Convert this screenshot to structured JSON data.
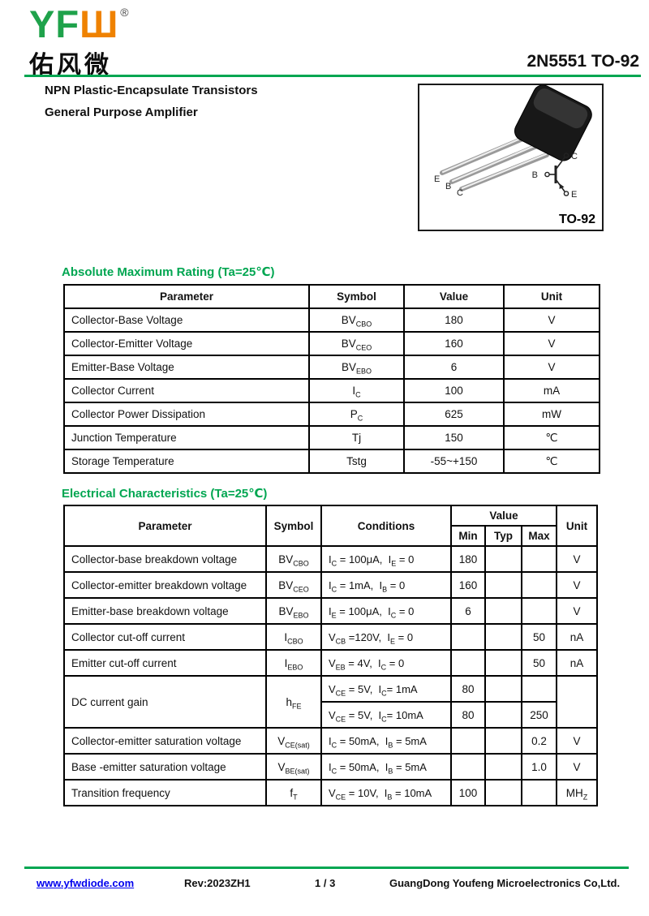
{
  "brand": {
    "logo_latin_green": "YF",
    "logo_latin_orange": "Ш",
    "registered_mark": "®",
    "logo_chinese": "佑风微",
    "accent_green": "#00a651",
    "logo_orange_color": "#ef8200"
  },
  "page": {
    "part_title": "2N5551 TO-92",
    "subtitle_line1": "NPN Plastic-Encapsulate Transistors",
    "subtitle_line2": "General Purpose Amplifier"
  },
  "package": {
    "label": "TO-92",
    "lead_labels": {
      "e": "E",
      "b": "B",
      "c": "C"
    },
    "symbol_labels": {
      "b": "B",
      "c": "C",
      "e": "E"
    }
  },
  "abs_max": {
    "title": "Absolute Maximum Rating (Ta=25℃)",
    "headers": {
      "param": "Parameter",
      "symbol": "Symbol",
      "value": "Value",
      "unit": "Unit"
    },
    "rows": [
      {
        "param": "Collector-Base Voltage",
        "symbol": "BV_{CBO}",
        "value": "180",
        "unit": "V"
      },
      {
        "param": "Collector-Emitter Voltage",
        "symbol": "BV_{CEO}",
        "value": "160",
        "unit": "V"
      },
      {
        "param": "Emitter-Base Voltage",
        "symbol": "BV_{EBO}",
        "value": "6",
        "unit": "V"
      },
      {
        "param": "Collector Current",
        "symbol": "I_{C}",
        "value": "100",
        "unit": "mA"
      },
      {
        "param": "Collector Power Dissipation",
        "symbol": "P_{C}",
        "value": "625",
        "unit": "mW"
      },
      {
        "param": "Junction Temperature",
        "symbol": "Tj",
        "value": "150",
        "unit": "℃"
      },
      {
        "param": "Storage Temperature",
        "symbol": "Tstg",
        "value": "-55~+150",
        "unit": "℃"
      }
    ]
  },
  "elec": {
    "title": "Electrical Characteristics (Ta=25℃)",
    "headers": {
      "param": "Parameter",
      "symbol": "Symbol",
      "cond": "Conditions",
      "value": "Value",
      "min": "Min",
      "typ": "Typ",
      "max": "Max",
      "unit": "Unit"
    },
    "rows": [
      {
        "param": "Collector-base breakdown voltage",
        "symbol": "BV_{CBO}",
        "cond": "I_{C} = 100μA,  I_{E} = 0",
        "min": "180",
        "typ": "",
        "max": "",
        "unit": "V"
      },
      {
        "param": "Collector-emitter breakdown voltage",
        "symbol": "BV_{CEO}",
        "cond": "I_{C} = 1mA,  I_{B} = 0",
        "min": "160",
        "typ": "",
        "max": "",
        "unit": "V"
      },
      {
        "param": "Emitter-base breakdown voltage",
        "symbol": "BV_{EBO}",
        "cond": "I_{E} = 100μA,  I_{C} = 0",
        "min": "6",
        "typ": "",
        "max": "",
        "unit": "V"
      },
      {
        "param": "Collector cut-off current",
        "symbol": "I_{CBO}",
        "cond": "V_{CB} =120V,  I_{E} = 0",
        "min": "",
        "typ": "",
        "max": "50",
        "unit": "nA"
      },
      {
        "param": "Emitter cut-off current",
        "symbol": "I_{EBO}",
        "cond": "V_{EB} = 4V,  I_{C} = 0",
        "min": "",
        "typ": "",
        "max": "50",
        "unit": "nA"
      },
      {
        "param": "DC current gain",
        "symbol": "h_{FE}",
        "unit": "",
        "sub_rows": [
          {
            "cond": "V_{CE} = 5V,  I_{C}= 1mA",
            "min": "80",
            "typ": "",
            "max": ""
          },
          {
            "cond": "V_{CE} = 5V,  I_{C}= 10mA",
            "min": "80",
            "typ": "",
            "max": "250"
          }
        ]
      },
      {
        "param": "Collector-emitter saturation voltage",
        "symbol": "V_{CE(sat)}",
        "cond": "I_{C} = 50mA,  I_{B} = 5mA",
        "min": "",
        "typ": "",
        "max": "0.2",
        "unit": "V"
      },
      {
        "param": "Base -emitter saturation voltage",
        "symbol": "V_{BE(sat)}",
        "cond": "I_{C} = 50mA,  I_{B} = 5mA",
        "min": "",
        "typ": "",
        "max": "1.0",
        "unit": "V"
      },
      {
        "param": "Transition frequency",
        "symbol": "f_{T}",
        "cond": "V_{CE} = 10V,  I_{B} = 10mA",
        "min": "100",
        "typ": "",
        "max": "",
        "unit": "MH_{Z}"
      }
    ]
  },
  "footer": {
    "website": "www.yfwdiode.com",
    "revision": "Rev:2023ZH1",
    "page_number": "1 / 3",
    "company": "GuangDong Youfeng Microelectronics Co,Ltd."
  }
}
